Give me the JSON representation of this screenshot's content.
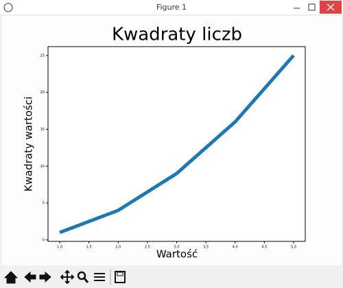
{
  "window": {
    "title": "Figure 1"
  },
  "chart_data": {
    "type": "line",
    "title": "Kwadraty liczb",
    "x_label": "Wartość",
    "y_label": "Kwadraty wartości",
    "x": [
      1,
      2,
      3,
      4,
      5
    ],
    "series": [
      {
        "color": "#1f77b4",
        "values": [
          1,
          4,
          9,
          16,
          25
        ]
      }
    ],
    "xlim": [
      0.8,
      5.2
    ],
    "xticks": [
      {
        "value": 1,
        "label": "1.0"
      },
      {
        "value": 1.5,
        "label": "1.5"
      },
      {
        "value": 2,
        "label": "2.0"
      },
      {
        "value": 2.5,
        "label": "2.5"
      },
      {
        "value": 3,
        "label": "3.0"
      },
      {
        "value": 3.5,
        "label": "3.5"
      },
      {
        "value": 4,
        "label": "4.0"
      },
      {
        "value": 4.5,
        "label": "4.5"
      },
      {
        "value": 5,
        "label": "5.0"
      }
    ],
    "ylim": [
      -0.2,
      26.2
    ],
    "yticks": [
      0,
      5,
      10,
      15,
      20,
      25
    ],
    "grid": false
  }
}
